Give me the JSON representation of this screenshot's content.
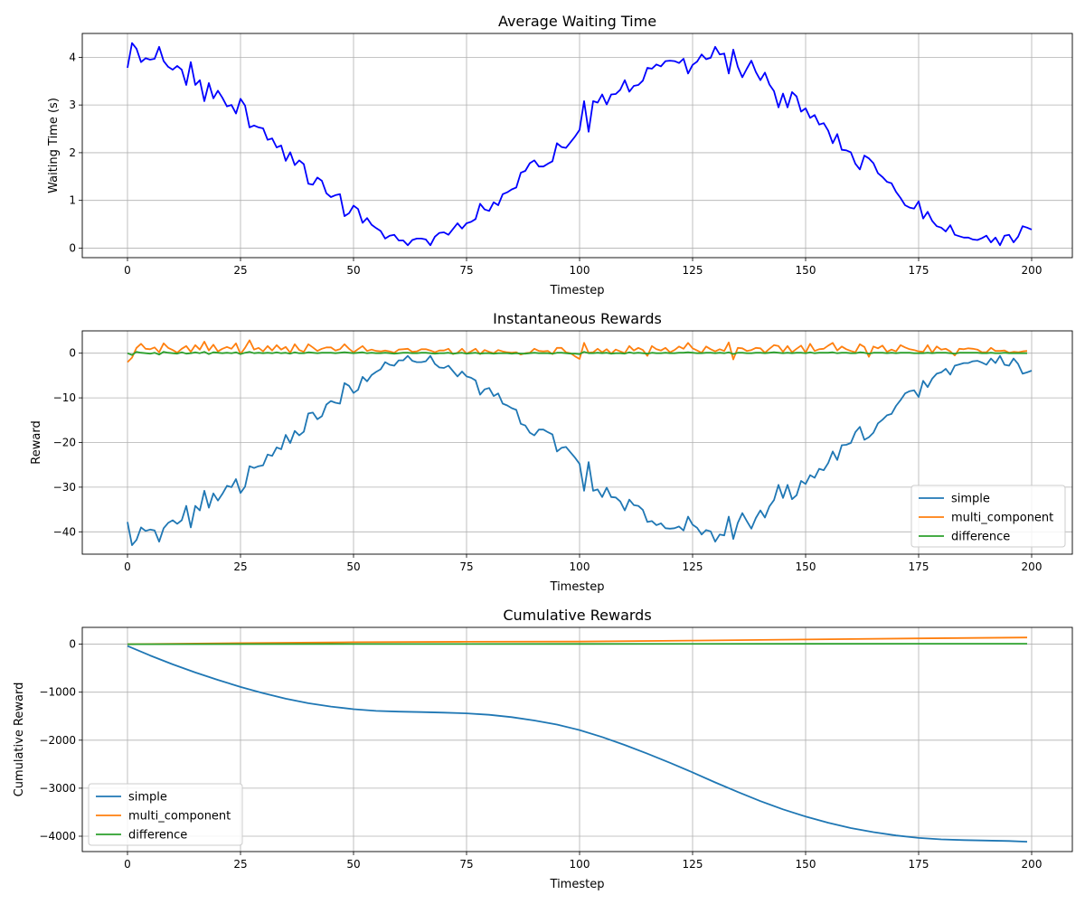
{
  "colors": {
    "waiting": "#0000ff",
    "simple": "#1f77b4",
    "multi_component": "#ff7f0e",
    "difference": "#2ca02c",
    "grid": "#b0b0b0",
    "frame": "#000000"
  },
  "chart_data": [
    {
      "type": "line",
      "title": "Average Waiting Time",
      "xlabel": "Timestep",
      "ylabel": "Waiting Time (s)",
      "xlim": [
        -10,
        209
      ],
      "ylim": [
        -0.2,
        4.5
      ],
      "xticks": [
        0,
        25,
        50,
        75,
        100,
        125,
        150,
        175,
        200
      ],
      "yticks": [
        0,
        1,
        2,
        3,
        4
      ],
      "grid": true,
      "legend": null,
      "series": [
        {
          "color_key": "waiting",
          "x_start": 0,
          "x_step": 1,
          "values": [
            3.78,
            4.3,
            4.18,
            3.9,
            3.98,
            3.95,
            3.97,
            4.22,
            3.92,
            3.8,
            3.74,
            3.82,
            3.74,
            3.42,
            3.9,
            3.42,
            3.52,
            3.08,
            3.46,
            3.14,
            3.3,
            3.15,
            2.97,
            3.0,
            2.82,
            3.13,
            2.99,
            2.53,
            2.57,
            2.53,
            2.51,
            2.27,
            2.3,
            2.11,
            2.15,
            1.83,
            2.01,
            1.74,
            1.84,
            1.76,
            1.35,
            1.33,
            1.48,
            1.41,
            1.15,
            1.07,
            1.11,
            1.13,
            0.67,
            0.73,
            0.89,
            0.82,
            0.53,
            0.63,
            0.49,
            0.42,
            0.36,
            0.2,
            0.26,
            0.28,
            0.16,
            0.16,
            0.06,
            0.17,
            0.2,
            0.2,
            0.18,
            0.06,
            0.24,
            0.32,
            0.33,
            0.28,
            0.4,
            0.52,
            0.41,
            0.52,
            0.55,
            0.61,
            0.93,
            0.81,
            0.78,
            0.96,
            0.9,
            1.13,
            1.17,
            1.23,
            1.27,
            1.58,
            1.62,
            1.78,
            1.84,
            1.71,
            1.71,
            1.77,
            1.82,
            2.2,
            2.12,
            2.1,
            2.22,
            2.34,
            2.48,
            3.08,
            2.44,
            3.08,
            3.05,
            3.22,
            3.01,
            3.22,
            3.23,
            3.32,
            3.52,
            3.28,
            3.4,
            3.42,
            3.51,
            3.78,
            3.76,
            3.85,
            3.81,
            3.92,
            3.93,
            3.92,
            3.88,
            3.97,
            3.66,
            3.84,
            3.91,
            4.06,
            3.96,
            3.99,
            4.22,
            4.06,
            4.08,
            3.66,
            4.16,
            3.8,
            3.58,
            3.76,
            3.93,
            3.69,
            3.52,
            3.68,
            3.43,
            3.29,
            2.95,
            3.24,
            2.95,
            3.27,
            3.18,
            2.86,
            2.93,
            2.73,
            2.79,
            2.59,
            2.62,
            2.46,
            2.2,
            2.39,
            2.06,
            2.05,
            2.01,
            1.77,
            1.65,
            1.94,
            1.88,
            1.78,
            1.57,
            1.49,
            1.39,
            1.36,
            1.18,
            1.05,
            0.9,
            0.85,
            0.83,
            0.98,
            0.62,
            0.76,
            0.57,
            0.46,
            0.43,
            0.35,
            0.48,
            0.28,
            0.25,
            0.22,
            0.22,
            0.18,
            0.17,
            0.21,
            0.26,
            0.12,
            0.22,
            0.06,
            0.26,
            0.28,
            0.12,
            0.24,
            0.46,
            0.43,
            0.39
          ]
        }
      ]
    },
    {
      "type": "line",
      "title": "Instantaneous Rewards",
      "xlabel": "Timestep",
      "ylabel": "Reward",
      "xlim": [
        -10,
        209
      ],
      "ylim": [
        -45,
        5
      ],
      "xticks": [
        0,
        25,
        50,
        75,
        100,
        125,
        150,
        175,
        200
      ],
      "yticks": [
        0,
        -10,
        -20,
        -30,
        -40
      ],
      "grid": true,
      "legend": "lower right",
      "series": [
        {
          "name": "simple",
          "color_key": "simple",
          "x_start": 0,
          "x_step": 1,
          "values": [
            -37.8,
            -43,
            -41.8,
            -39,
            -39.8,
            -39.5,
            -39.7,
            -42.2,
            -39.2,
            -38,
            -37.4,
            -38.2,
            -37.4,
            -34.2,
            -39,
            -34.2,
            -35.2,
            -30.8,
            -34.6,
            -31.4,
            -33,
            -31.5,
            -29.7,
            -30,
            -28.2,
            -31.3,
            -29.9,
            -25.3,
            -25.7,
            -25.3,
            -25.1,
            -22.7,
            -23,
            -21.1,
            -21.5,
            -18.3,
            -20.1,
            -17.4,
            -18.4,
            -17.6,
            -13.5,
            -13.3,
            -14.8,
            -14.1,
            -11.5,
            -10.7,
            -11.1,
            -11.3,
            -6.7,
            -7.3,
            -8.9,
            -8.2,
            -5.3,
            -6.3,
            -4.9,
            -4.2,
            -3.6,
            -2,
            -2.6,
            -2.8,
            -1.6,
            -1.6,
            -0.6,
            -1.7,
            -2,
            -2,
            -1.8,
            -0.6,
            -2.4,
            -3.2,
            -3.3,
            -2.8,
            -4,
            -5.2,
            -4.1,
            -5.2,
            -5.5,
            -6.1,
            -9.3,
            -8.1,
            -7.8,
            -9.6,
            -9,
            -11.3,
            -11.7,
            -12.3,
            -12.7,
            -15.8,
            -16.2,
            -17.8,
            -18.4,
            -17.1,
            -17.1,
            -17.7,
            -18.2,
            -22,
            -21.2,
            -21,
            -22.2,
            -23.4,
            -24.8,
            -30.8,
            -24.4,
            -30.8,
            -30.5,
            -32.2,
            -30.1,
            -32.2,
            -32.3,
            -33.2,
            -35.2,
            -32.8,
            -34,
            -34.2,
            -35.1,
            -37.8,
            -37.6,
            -38.5,
            -38.1,
            -39.2,
            -39.3,
            -39.2,
            -38.8,
            -39.7,
            -36.6,
            -38.4,
            -39.1,
            -40.6,
            -39.6,
            -39.9,
            -42.2,
            -40.6,
            -40.8,
            -36.6,
            -41.6,
            -38,
            -35.8,
            -37.6,
            -39.3,
            -36.9,
            -35.2,
            -36.8,
            -34.3,
            -32.9,
            -29.5,
            -32.4,
            -29.5,
            -32.7,
            -31.8,
            -28.6,
            -29.3,
            -27.3,
            -27.9,
            -25.9,
            -26.2,
            -24.6,
            -22,
            -23.9,
            -20.6,
            -20.5,
            -20.1,
            -17.7,
            -16.5,
            -19.4,
            -18.8,
            -17.8,
            -15.7,
            -14.9,
            -13.9,
            -13.6,
            -11.8,
            -10.5,
            -9,
            -8.5,
            -8.3,
            -9.8,
            -6.2,
            -7.6,
            -5.7,
            -4.6,
            -4.3,
            -3.5,
            -4.8,
            -2.8,
            -2.5,
            -2.2,
            -2.2,
            -1.8,
            -1.7,
            -2.1,
            -2.6,
            -1.2,
            -2.2,
            -0.6,
            -2.6,
            -2.8,
            -1.2,
            -2.4,
            -4.6,
            -4.3,
            -3.9
          ]
        },
        {
          "name": "multi_component",
          "color_key": "multi_component",
          "x_start": 0,
          "x_step": 1,
          "values": [
            -2,
            -1,
            1.2,
            2.1,
            1,
            0.9,
            1.3,
            0.2,
            2.2,
            1.2,
            0.7,
            0.1,
            1,
            1.6,
            0.3,
            1.8,
            0.8,
            2.6,
            0.6,
            1.9,
            0.4,
            1,
            1.4,
            1,
            2.2,
            -0.2,
            1.2,
            2.9,
            0.8,
            1.2,
            0.4,
            1.6,
            0.6,
            1.8,
            0.8,
            1.4,
            0.1,
            2,
            0.7,
            0.3,
            2,
            1.3,
            0.5,
            1,
            1.3,
            1.3,
            0.6,
            0.9,
            2,
            1,
            0.2,
            0.9,
            1.6,
            0.5,
            0.8,
            0.5,
            0.4,
            0.6,
            0.4,
            0.1,
            0.8,
            0.9,
            1,
            0.3,
            0.4,
            0.9,
            0.9,
            0.6,
            0.2,
            0.6,
            0.6,
            1,
            -0.2,
            0.1,
            1,
            -0.1,
            0.4,
            1,
            -0.2,
            0.7,
            0.3,
            0,
            0.7,
            0.4,
            0.2,
            0.1,
            0.2,
            -0.3,
            0,
            0.1,
            1,
            0.5,
            0.4,
            0.5,
            -0.2,
            1.2,
            1.2,
            0.2,
            0,
            -0.7,
            -1.3,
            2.3,
            0.1,
            0.2,
            1,
            0.2,
            0.9,
            -0.1,
            0.8,
            0.4,
            0,
            1.6,
            0.6,
            1.2,
            0.7,
            -0.6,
            1.6,
            0.9,
            0.6,
            1.2,
            0.2,
            0.7,
            1.5,
            1,
            2.3,
            1.1,
            0.6,
            0.1,
            1.5,
            0.9,
            0.4,
            0.9,
            0.5,
            2.4,
            -1.4,
            1.2,
            1.1,
            0.5,
            0.7,
            1.2,
            1.1,
            0.1,
            1,
            1.8,
            1.6,
            0.3,
            1.6,
            0.2,
            1,
            1.7,
            0.1,
            2.1,
            0.5,
            0.9,
            1,
            1.7,
            2.3,
            0.6,
            1.5,
            0.9,
            0.5,
            0.2,
            2,
            1.4,
            -0.8,
            1.5,
            1.1,
            1.7,
            0.3,
            0.8,
            0.4,
            1.8,
            1.3,
            0.9,
            0.7,
            0.4,
            0.3,
            1.8,
            0.1,
            1.5,
            0.8,
            1,
            0.4,
            -0.5,
            1,
            0.9,
            1.1,
            1,
            0.8,
            0.2,
            0.2,
            1.2,
            0.5,
            0.5,
            0.6,
            0.1,
            0.3,
            0.2,
            0.4,
            0.5
          ]
        },
        {
          "name": "difference",
          "color_key": "difference",
          "x_start": 0,
          "x_step": 1,
          "values": [
            0,
            -0.4,
            0.3,
            0.1,
            0,
            -0.1,
            0.1,
            -0.3,
            0.3,
            0.1,
            0,
            -0.1,
            0.2,
            -0.1,
            0,
            0.2,
            0,
            0.3,
            -0.2,
            0.2,
            0.1,
            0,
            0.1,
            0,
            0.2,
            -0.2,
            0.1,
            0.3,
            0,
            0.1,
            0,
            0.1,
            0,
            0.2,
            0,
            0.1,
            -0.1,
            0.2,
            0,
            0,
            0.2,
            0.1,
            0,
            0.1,
            0.1,
            0.1,
            0,
            0.1,
            0.2,
            0.1,
            0,
            0.1,
            0.2,
            0,
            0.1,
            0,
            0,
            0.1,
            0,
            -0.1,
            0,
            0.1,
            0.1,
            0,
            0,
            0.1,
            0.1,
            0,
            -0.1,
            0,
            0,
            0.1,
            -0.1,
            0,
            0.1,
            -0.1,
            0,
            0.1,
            -0.1,
            0,
            0,
            -0.1,
            0,
            0,
            0,
            -0.1,
            0,
            -0.1,
            -0.1,
            0,
            0.1,
            0,
            0,
            0,
            -0.1,
            0.1,
            0.1,
            0,
            -0.1,
            -0.1,
            -0.2,
            0.3,
            0,
            0,
            0.1,
            0,
            0.1,
            -0.1,
            0,
            0,
            -0.1,
            0.2,
            0,
            0.1,
            0,
            -0.1,
            0.1,
            0,
            0,
            0.1,
            0,
            0,
            0.1,
            0.1,
            0.2,
            0.1,
            0,
            0,
            0.1,
            0.1,
            0,
            0.1,
            0,
            0.2,
            -0.2,
            0.1,
            0.1,
            0,
            0,
            0.1,
            0.1,
            0,
            0.1,
            0.2,
            0.1,
            0,
            0.1,
            0,
            0.1,
            0.1,
            0,
            0.2,
            0,
            0.1,
            0.1,
            0.1,
            0.2,
            0,
            0.1,
            0.1,
            0,
            0,
            0.2,
            0.1,
            -0.1,
            0.1,
            0.1,
            0.1,
            0,
            0.1,
            0,
            0.1,
            0.1,
            0.1,
            0,
            0,
            0,
            0.1,
            0,
            0.1,
            0.1,
            0.1,
            0,
            -0.1,
            0.1,
            0.1,
            0.1,
            0.1,
            0.1,
            0,
            0,
            0.1,
            0,
            0,
            0.1,
            0,
            0,
            0,
            0,
            0
          ]
        }
      ]
    },
    {
      "type": "line",
      "title": "Cumulative Rewards",
      "xlabel": "Timestep",
      "ylabel": "Cumulative Reward",
      "xlim": [
        -10,
        209
      ],
      "ylim": [
        -4320,
        350
      ],
      "xticks": [
        0,
        25,
        50,
        75,
        100,
        125,
        150,
        175,
        200
      ],
      "yticks": [
        0,
        -1000,
        -2000,
        -3000,
        -4000
      ],
      "grid": true,
      "legend": "lower left",
      "series": [
        {
          "name": "simple",
          "color_key": "simple",
          "x": [
            0,
            5,
            10,
            15,
            20,
            25,
            30,
            35,
            40,
            45,
            50,
            55,
            60,
            65,
            70,
            75,
            80,
            85,
            90,
            95,
            100,
            105,
            110,
            115,
            120,
            125,
            130,
            135,
            140,
            145,
            150,
            155,
            160,
            165,
            170,
            175,
            180,
            185,
            190,
            195,
            199
          ],
          "y": [
            -38,
            -235,
            -420,
            -590,
            -745,
            -890,
            -1020,
            -1135,
            -1230,
            -1300,
            -1355,
            -1390,
            -1405,
            -1415,
            -1425,
            -1440,
            -1470,
            -1520,
            -1590,
            -1675,
            -1790,
            -1935,
            -2100,
            -2280,
            -2470,
            -2670,
            -2880,
            -3080,
            -3270,
            -3440,
            -3590,
            -3720,
            -3830,
            -3915,
            -3985,
            -4035,
            -4065,
            -4080,
            -4090,
            -4100,
            -4115
          ]
        },
        {
          "name": "multi_component",
          "color_key": "multi_component",
          "x": [
            0,
            25,
            50,
            75,
            100,
            125,
            150,
            175,
            199
          ],
          "y": [
            -2,
            22,
            42,
            50,
            55,
            75,
            97,
            120,
            140
          ]
        },
        {
          "name": "difference",
          "color_key": "difference",
          "x": [
            0,
            50,
            100,
            150,
            199
          ],
          "y": [
            0,
            3,
            5,
            8,
            10
          ]
        }
      ]
    }
  ]
}
